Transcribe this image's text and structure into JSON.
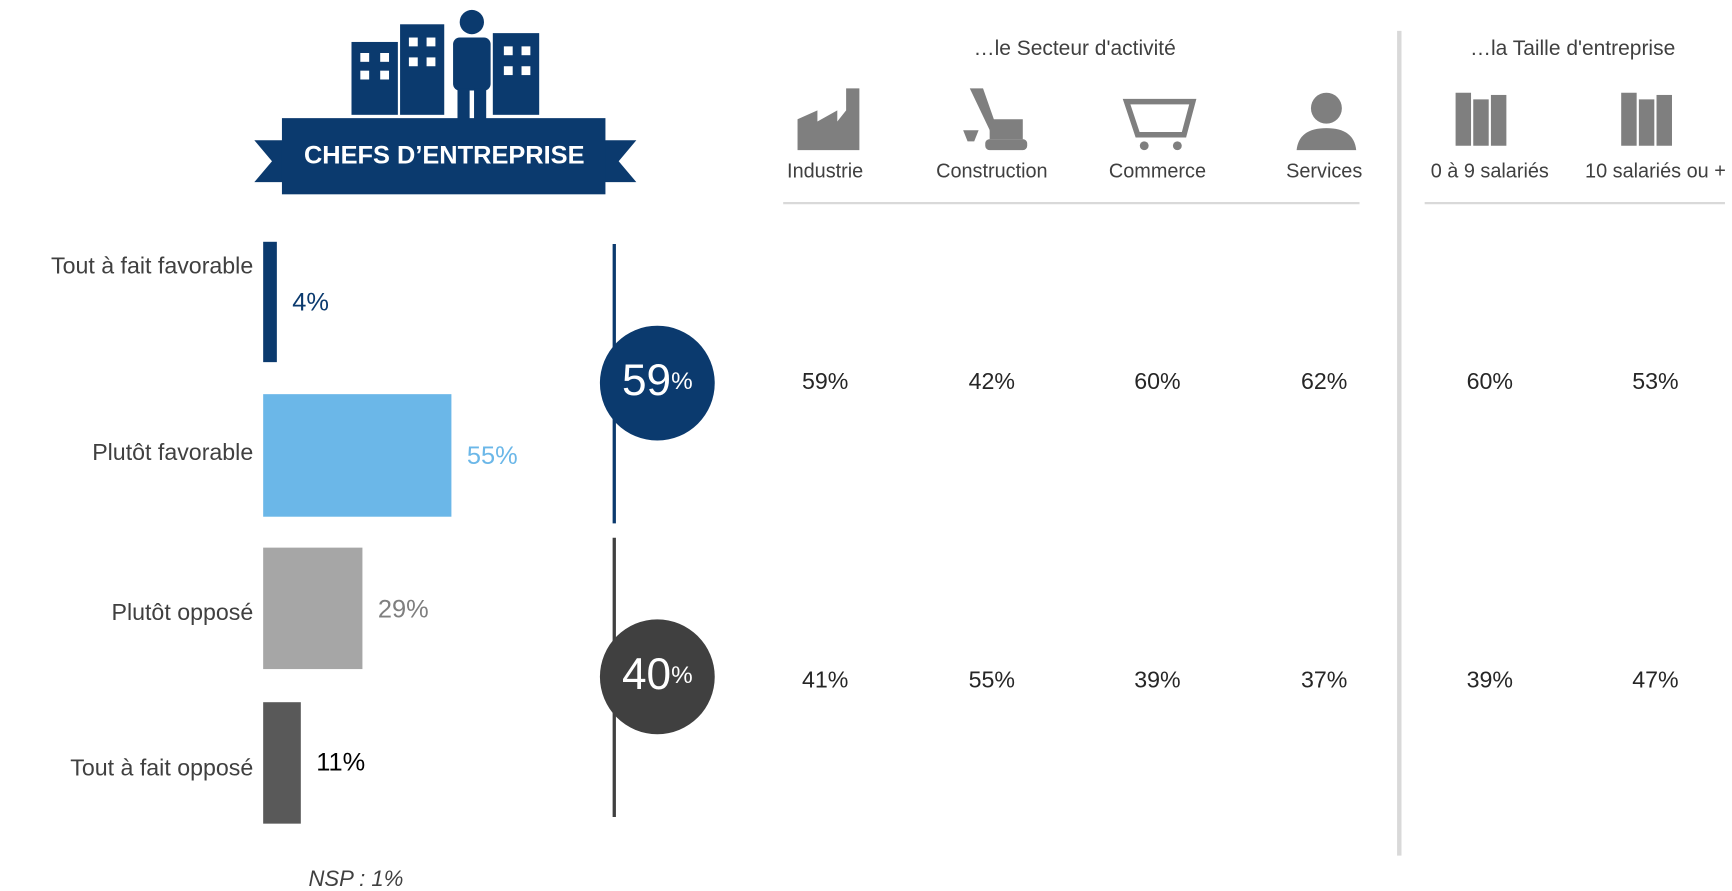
{
  "header": {
    "title": "CHEFS D’ENTREPRISE"
  },
  "chart_data": {
    "type": "bar",
    "orientation": "horizontal",
    "categories": [
      "Tout à fait favorable",
      "Plutôt favorable",
      "Plutôt opposé",
      "Tout à fait opposé"
    ],
    "values": [
      4,
      55,
      29,
      11
    ],
    "value_labels": [
      "4%",
      "55%",
      "29%",
      "11%"
    ],
    "colors": [
      "#0b3a6e",
      "#6bb7e8",
      "#a6a6a6",
      "#595959"
    ],
    "label_colors": [
      "#0b3a6e",
      "#6bb7e8",
      "#7f7f7f",
      "#000000"
    ],
    "note": "NSP : 1%"
  },
  "summary": {
    "values": [
      59,
      40
    ],
    "unit": "%",
    "colors": [
      "#0b3a6e",
      "#404040"
    ]
  },
  "breakdown": {
    "groups": [
      {
        "title": "…le Secteur d'activité",
        "columns": [
          "Industrie",
          "Construction",
          "Commerce",
          "Services"
        ]
      },
      {
        "title": "…la Taille d'entreprise",
        "columns": [
          "0 à 9 salariés",
          "10 salariés ou +"
        ]
      }
    ],
    "rows": [
      [
        "59%",
        "42%",
        "60%",
        "62%",
        "60%",
        "53%"
      ],
      [
        "41%",
        "55%",
        "39%",
        "37%",
        "39%",
        "47%"
      ]
    ]
  }
}
